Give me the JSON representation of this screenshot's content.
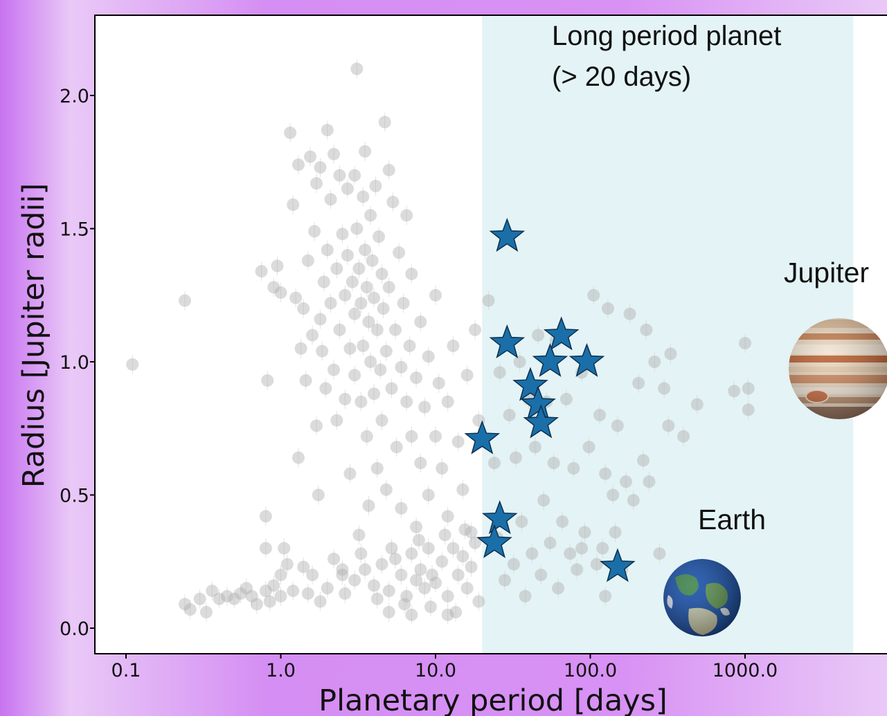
{
  "chart_data": {
    "type": "scatter",
    "xlabel": "Planetary period [days]",
    "ylabel": "Radius [Jupiter radii]",
    "xscale": "log",
    "xlim": [
      0.065,
      8000
    ],
    "ylim": [
      -0.1,
      2.3
    ],
    "x_ticks": [
      "0.1",
      "1.0",
      "10.0",
      "100.0",
      "1000.0"
    ],
    "y_ticks": [
      "0.0",
      "0.5",
      "1.0",
      "1.5",
      "2.0"
    ],
    "grid": false,
    "shaded_region": {
      "x_from": 20,
      "x_to": 5000,
      "color": "#e4f3f5"
    },
    "annotations": {
      "long_period_line1": "Long period planet",
      "long_period_line2": "(> 20 days)",
      "jupiter": "Jupiter",
      "earth": "Earth"
    },
    "series": [
      {
        "marker": "circle",
        "color": "#b0b0b0",
        "points": [
          [
            0.11,
            0.99
          ],
          [
            0.24,
            1.23
          ],
          [
            0.24,
            0.09
          ],
          [
            0.26,
            0.07
          ],
          [
            0.3,
            0.11
          ],
          [
            0.33,
            0.06
          ],
          [
            0.36,
            0.14
          ],
          [
            0.4,
            0.11
          ],
          [
            0.45,
            0.12
          ],
          [
            0.5,
            0.11
          ],
          [
            0.55,
            0.13
          ],
          [
            0.6,
            0.15
          ],
          [
            0.65,
            0.12
          ],
          [
            0.7,
            0.09
          ],
          [
            0.75,
            1.34
          ],
          [
            0.8,
            0.14
          ],
          [
            0.8,
            0.42
          ],
          [
            0.8,
            0.3
          ],
          [
            0.82,
            0.93
          ],
          [
            0.85,
            0.1
          ],
          [
            0.9,
            1.28
          ],
          [
            0.9,
            0.16
          ],
          [
            0.95,
            1.36
          ],
          [
            1.0,
            0.12
          ],
          [
            1.0,
            0.2
          ],
          [
            1.0,
            1.26
          ],
          [
            1.05,
            0.3
          ],
          [
            1.1,
            0.24
          ],
          [
            1.15,
            1.86
          ],
          [
            1.2,
            0.14
          ],
          [
            1.2,
            1.59
          ],
          [
            1.25,
            1.24
          ],
          [
            1.3,
            0.64
          ],
          [
            1.3,
            1.74
          ],
          [
            1.35,
            1.05
          ],
          [
            1.4,
            1.2
          ],
          [
            1.4,
            0.23
          ],
          [
            1.45,
            0.93
          ],
          [
            1.5,
            1.38
          ],
          [
            1.5,
            0.13
          ],
          [
            1.55,
            1.77
          ],
          [
            1.6,
            1.1
          ],
          [
            1.6,
            0.2
          ],
          [
            1.65,
            1.49
          ],
          [
            1.7,
            0.76
          ],
          [
            1.7,
            1.67
          ],
          [
            1.75,
            0.5
          ],
          [
            1.8,
            1.16
          ],
          [
            1.8,
            1.73
          ],
          [
            1.85,
            1.04
          ],
          [
            1.9,
            1.3
          ],
          [
            1.95,
            0.9
          ],
          [
            2.0,
            1.87
          ],
          [
            2.0,
            1.42
          ],
          [
            2.0,
            0.15
          ],
          [
            2.1,
            1.22
          ],
          [
            2.1,
            1.61
          ],
          [
            2.2,
            0.97
          ],
          [
            2.2,
            1.78
          ],
          [
            2.3,
            1.35
          ],
          [
            2.3,
            0.78
          ],
          [
            2.4,
            1.7
          ],
          [
            2.4,
            1.12
          ],
          [
            2.5,
            1.48
          ],
          [
            2.5,
            0.22
          ],
          [
            2.6,
            0.86
          ],
          [
            2.6,
            1.25
          ],
          [
            2.7,
            1.65
          ],
          [
            2.7,
            1.4
          ],
          [
            2.8,
            1.05
          ],
          [
            2.8,
            0.58
          ],
          [
            2.9,
            1.3
          ],
          [
            3.0,
            1.7
          ],
          [
            3.0,
            1.18
          ],
          [
            3.0,
            0.95
          ],
          [
            3.1,
            2.1
          ],
          [
            3.1,
            1.5
          ],
          [
            3.2,
            1.35
          ],
          [
            3.2,
            0.35
          ],
          [
            3.3,
            1.22
          ],
          [
            3.3,
            0.85
          ],
          [
            3.4,
            1.62
          ],
          [
            3.4,
            1.06
          ],
          [
            3.5,
            1.79
          ],
          [
            3.5,
            1.42
          ],
          [
            3.6,
            1.28
          ],
          [
            3.6,
            0.72
          ],
          [
            3.7,
            1.15
          ],
          [
            3.7,
            0.46
          ],
          [
            3.8,
            1.55
          ],
          [
            3.8,
            1.0
          ],
          [
            3.9,
            1.38
          ],
          [
            4.0,
            1.24
          ],
          [
            4.0,
            0.88
          ],
          [
            4.1,
            1.66
          ],
          [
            4.2,
            1.12
          ],
          [
            4.2,
            0.6
          ],
          [
            4.3,
            1.47
          ],
          [
            4.4,
            0.97
          ],
          [
            4.5,
            1.33
          ],
          [
            4.5,
            0.78
          ],
          [
            4.6,
            1.2
          ],
          [
            4.7,
            1.9
          ],
          [
            4.8,
            1.04
          ],
          [
            4.8,
            0.52
          ],
          [
            5.0,
            1.72
          ],
          [
            5.0,
            1.28
          ],
          [
            5.2,
            0.9
          ],
          [
            5.3,
            1.6
          ],
          [
            5.5,
            1.12
          ],
          [
            5.6,
            0.68
          ],
          [
            5.8,
            1.41
          ],
          [
            6.0,
            0.98
          ],
          [
            6.0,
            0.45
          ],
          [
            6.2,
            1.22
          ],
          [
            6.5,
            0.85
          ],
          [
            6.5,
            1.55
          ],
          [
            6.8,
            1.06
          ],
          [
            7.0,
            0.72
          ],
          [
            7.0,
            1.33
          ],
          [
            7.5,
            0.94
          ],
          [
            7.5,
            0.38
          ],
          [
            8.0,
            1.15
          ],
          [
            8.0,
            0.62
          ],
          [
            8.5,
            0.83
          ],
          [
            9.0,
            1.02
          ],
          [
            9.0,
            0.5
          ],
          [
            10.0,
            0.72
          ],
          [
            10.0,
            1.25
          ],
          [
            10.5,
            0.92
          ],
          [
            11.0,
            0.6
          ],
          [
            12.0,
            0.85
          ],
          [
            12.0,
            0.42
          ],
          [
            13.0,
            1.06
          ],
          [
            14.0,
            0.7
          ],
          [
            15.0,
            0.52
          ],
          [
            16.0,
            0.95
          ],
          [
            17.0,
            0.36
          ],
          [
            18.0,
            1.12
          ],
          [
            19.0,
            0.78
          ],
          [
            2.5,
            0.2
          ],
          [
            3.0,
            0.18
          ],
          [
            3.5,
            0.22
          ],
          [
            4.0,
            0.16
          ],
          [
            4.5,
            0.24
          ],
          [
            5.0,
            0.14
          ],
          [
            5.5,
            0.26
          ],
          [
            6.0,
            0.2
          ],
          [
            6.5,
            0.12
          ],
          [
            7.0,
            0.28
          ],
          [
            7.5,
            0.18
          ],
          [
            8.0,
            0.22
          ],
          [
            8.5,
            0.15
          ],
          [
            9.0,
            0.3
          ],
          [
            9.5,
            0.2
          ],
          [
            10.0,
            0.17
          ],
          [
            11.0,
            0.25
          ],
          [
            12.0,
            0.12
          ],
          [
            13.0,
            0.3
          ],
          [
            14.0,
            0.2
          ],
          [
            15.0,
            0.27
          ],
          [
            16.0,
            0.15
          ],
          [
            17.0,
            0.23
          ],
          [
            18.0,
            0.32
          ],
          [
            19.0,
            0.1
          ],
          [
            2.2,
            0.26
          ],
          [
            1.8,
            0.1
          ],
          [
            2.6,
            0.13
          ],
          [
            3.3,
            0.28
          ],
          [
            4.2,
            0.11
          ],
          [
            5.2,
            0.3
          ],
          [
            6.3,
            0.09
          ],
          [
            7.8,
            0.33
          ],
          [
            9.3,
            0.08
          ],
          [
            11.5,
            0.35
          ],
          [
            13.5,
            0.06
          ],
          [
            15.5,
            0.37
          ],
          [
            5.0,
            0.06
          ],
          [
            7.0,
            0.05
          ],
          [
            12.0,
            0.05
          ],
          [
            22,
            1.23
          ],
          [
            24,
            0.62
          ],
          [
            25,
            0.34
          ],
          [
            26,
            0.96
          ],
          [
            28,
            0.18
          ],
          [
            30,
            0.8
          ],
          [
            32,
            0.24
          ],
          [
            33,
            0.64
          ],
          [
            35,
            1.0
          ],
          [
            36,
            0.4
          ],
          [
            38,
            0.12
          ],
          [
            40,
            0.86
          ],
          [
            42,
            0.28
          ],
          [
            44,
            0.68
          ],
          [
            46,
            1.1
          ],
          [
            48,
            0.2
          ],
          [
            50,
            0.48
          ],
          [
            52,
            0.85
          ],
          [
            55,
            0.32
          ],
          [
            58,
            0.62
          ],
          [
            60,
            1.08
          ],
          [
            62,
            0.15
          ],
          [
            66,
            0.4
          ],
          [
            70,
            0.86
          ],
          [
            74,
            0.28
          ],
          [
            78,
            0.6
          ],
          [
            82,
            0.22
          ],
          [
            88,
            0.96
          ],
          [
            92,
            0.36
          ],
          [
            98,
            0.68
          ],
          [
            105,
            1.25
          ],
          [
            110,
            0.24
          ],
          [
            115,
            0.8
          ],
          [
            120,
            0.3
          ],
          [
            125,
            0.58
          ],
          [
            130,
            1.2
          ],
          [
            140,
            0.5
          ],
          [
            150,
            0.76
          ],
          [
            160,
            0.22
          ],
          [
            170,
            0.55
          ],
          [
            180,
            1.18
          ],
          [
            190,
            0.48
          ],
          [
            205,
            0.92
          ],
          [
            220,
            0.63
          ],
          [
            230,
            1.12
          ],
          [
            240,
            0.55
          ],
          [
            260,
            1.0
          ],
          [
            280,
            0.28
          ],
          [
            300,
            0.9
          ],
          [
            320,
            0.76
          ],
          [
            330,
            1.03
          ],
          [
            400,
            0.72
          ],
          [
            490,
            0.84
          ],
          [
            850,
            0.89
          ],
          [
            1000,
            1.07
          ],
          [
            1050,
            0.9
          ],
          [
            1050,
            0.82
          ],
          [
            145,
            0.36
          ],
          [
            125,
            0.12
          ],
          [
            88,
            0.3
          ]
        ]
      },
      {
        "marker": "star",
        "color": "#1a6fa8",
        "points": [
          [
            29,
            1.47
          ],
          [
            29,
            1.07
          ],
          [
            65,
            1.1
          ],
          [
            55,
            1.0
          ],
          [
            95,
            1.0
          ],
          [
            41,
            0.91
          ],
          [
            46,
            0.84
          ],
          [
            48,
            0.77
          ],
          [
            20,
            0.71
          ],
          [
            26,
            0.41
          ],
          [
            24,
            0.32
          ],
          [
            150,
            0.23
          ]
        ]
      }
    ]
  }
}
